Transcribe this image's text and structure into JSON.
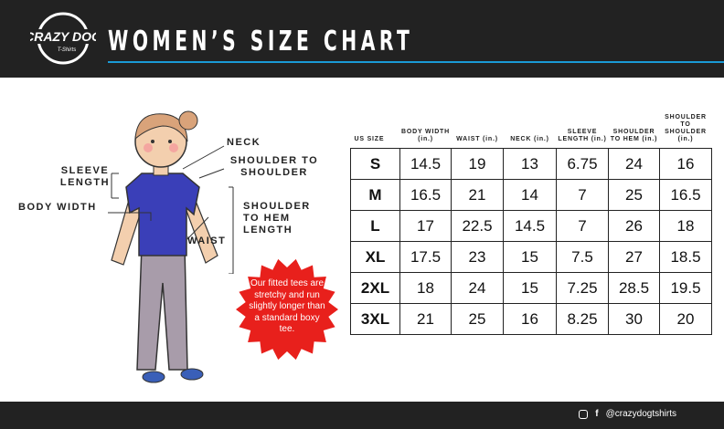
{
  "header": {
    "title": "WOMEN’S SIZE CHART",
    "logo_text": "CRAZY DOG T-Shirts"
  },
  "labels": {
    "neck": "NECK",
    "shoulder_to_shoulder": "SHOULDER TO SHOULDER",
    "sleeve_length": "SLEEVE LENGTH",
    "body_width": "BODY WIDTH",
    "shoulder_to_hem": "SHOULDER TO HEM LENGTH",
    "waist": "WAIST"
  },
  "callout": "Our fitted tees are stretchy and run slightly longer than a standard boxy tee.",
  "table": {
    "headers": [
      "US SIZE",
      "BODY WIDTH (in.)",
      "WAIST (in.)",
      "NECK (in.)",
      "SLEEVE LENGTH (in.)",
      "SHOULDER TO HEM (in.)",
      "SHOULDER TO SHOULDER (in.)"
    ],
    "rows": [
      [
        "S",
        "14.5",
        "19",
        "13",
        "6.75",
        "24",
        "16"
      ],
      [
        "M",
        "16.5",
        "21",
        "14",
        "7",
        "25",
        "16.5"
      ],
      [
        "L",
        "17",
        "22.5",
        "14.5",
        "7",
        "26",
        "18"
      ],
      [
        "XL",
        "17.5",
        "23",
        "15",
        "7.5",
        "27",
        "18.5"
      ],
      [
        "2XL",
        "18",
        "24",
        "15",
        "7.25",
        "28.5",
        "19.5"
      ],
      [
        "3XL",
        "21",
        "25",
        "16",
        "8.25",
        "30",
        "20"
      ]
    ]
  },
  "footer": {
    "handle": "@crazydogtshirts",
    "icons": [
      "instagram-icon",
      "facebook-icon"
    ]
  },
  "colors": {
    "header": "#222222",
    "accent": "#1a9ad6",
    "shirt": "#3a3fb8",
    "callout": "#e8201c"
  }
}
